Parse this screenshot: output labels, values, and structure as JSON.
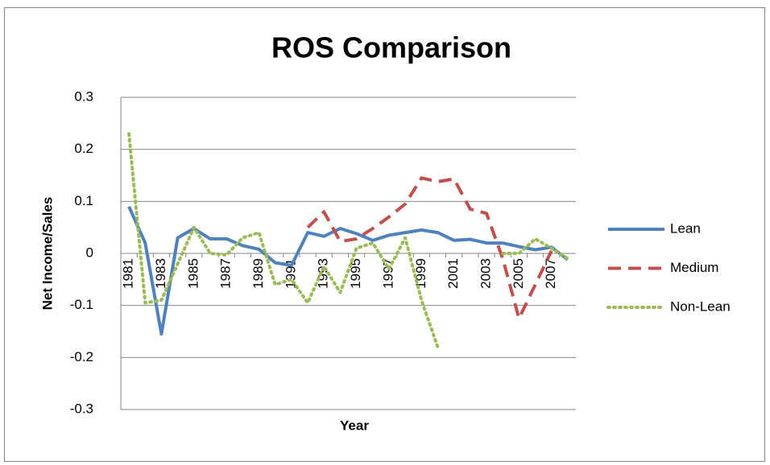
{
  "chart_data": {
    "type": "line",
    "title": "ROS Comparison",
    "x_label": "Year",
    "y_label": "Net Income/Sales",
    "categories": [
      1981,
      null,
      1983,
      null,
      1985,
      null,
      1987,
      null,
      1989,
      null,
      1991,
      null,
      1993,
      null,
      1995,
      null,
      1997,
      null,
      1999,
      null,
      2001,
      null,
      2003,
      null,
      2005,
      null,
      2007,
      null
    ],
    "series": [
      {
        "name": "Lean",
        "color": "#4f81bd",
        "line_style": "solid",
        "values": [
          0.09,
          0.02,
          -0.155,
          0.03,
          0.048,
          0.028,
          0.028,
          0.015,
          0.008,
          -0.018,
          -0.023,
          0.04,
          0.033,
          0.048,
          0.038,
          0.025,
          0.035,
          0.04,
          0.045,
          0.04,
          0.025,
          0.027,
          0.02,
          0.02,
          0.013,
          0.007,
          0.012,
          -0.012
        ]
      },
      {
        "name": "Medium",
        "color": "#c0504d",
        "line_style": "dashed",
        "values": [
          null,
          null,
          null,
          null,
          null,
          null,
          null,
          null,
          null,
          null,
          null,
          0.05,
          0.08,
          0.023,
          0.028,
          0.048,
          0.07,
          0.095,
          0.145,
          0.138,
          0.143,
          0.085,
          0.077,
          -0.01,
          -0.125,
          -0.06,
          0.005,
          null
        ]
      },
      {
        "name": "Non-Lean",
        "color": "#9bbb59",
        "line_style": "dotted",
        "values": [
          0.23,
          -0.095,
          -0.09,
          -0.02,
          0.05,
          0.0,
          -0.003,
          0.03,
          0.04,
          -0.06,
          -0.05,
          -0.095,
          -0.025,
          -0.075,
          0.01,
          0.02,
          -0.03,
          0.03,
          -0.09,
          -0.18,
          null,
          null,
          null,
          0.0,
          0.0,
          0.028,
          0.01,
          -0.01
        ]
      }
    ],
    "ylim": [
      -0.3,
      0.3
    ],
    "yticks": [
      -0.3,
      -0.2,
      -0.1,
      0,
      0.1,
      0.2,
      0.3
    ],
    "grid": true,
    "legend": "right"
  }
}
